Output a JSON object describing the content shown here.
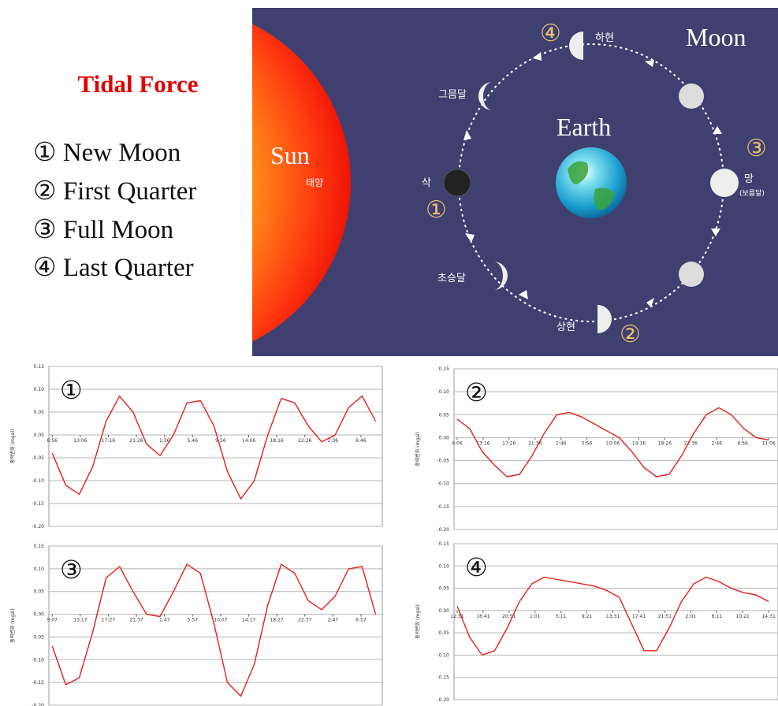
{
  "diagram": {
    "title": "Tidal Force",
    "legend": [
      "① New Moon",
      "② First Quarter",
      "③ Full Moon",
      "④ Last Quarter"
    ],
    "sun": "Sun",
    "sun_korean": "태양",
    "moon": "Moon",
    "earth": "Earth",
    "phases": {
      "new": "삭",
      "waxing_crescent": "초승달",
      "first_quarter": "상현",
      "full": "망",
      "full_alt": "(보름달)",
      "last_quarter": "하현",
      "waning_crescent": "그믐달"
    },
    "numbers": [
      "①",
      "②",
      "③",
      "④"
    ]
  },
  "chart_data": [
    {
      "type": "line",
      "label": "①",
      "y_label": "중력변화 (mgal)",
      "color": "#e3201b",
      "x": [
        0,
        2,
        4,
        6,
        8,
        10,
        12,
        14,
        16,
        18,
        20,
        22,
        24,
        26,
        28,
        30,
        32,
        34,
        36,
        38,
        40,
        42,
        44,
        46,
        48
      ],
      "values": [
        -0.04,
        -0.11,
        -0.13,
        -0.07,
        0.03,
        0.085,
        0.05,
        -0.02,
        -0.045,
        0.0,
        0.07,
        0.075,
        0.02,
        -0.08,
        -0.14,
        -0.1,
        0.0,
        0.08,
        0.07,
        0.02,
        -0.015,
        0.0,
        0.06,
        0.085,
        0.03
      ],
      "xlim": [
        -0.5,
        49
      ],
      "ylim": [
        -0.2,
        0.15
      ],
      "xticks": [
        {
          "value": 0,
          "label": "8:56"
        },
        {
          "value": 4.17,
          "label": "13:06"
        },
        {
          "value": 8.33,
          "label": "17:16"
        },
        {
          "value": 12.5,
          "label": "21:26"
        },
        {
          "value": 16.67,
          "label": "1:36"
        },
        {
          "value": 20.83,
          "label": "5:46"
        },
        {
          "value": 25,
          "label": "9:56"
        },
        {
          "value": 29.17,
          "label": "14:06"
        },
        {
          "value": 33.33,
          "label": "18:16"
        },
        {
          "value": 37.5,
          "label": "22:26"
        },
        {
          "value": 41.67,
          "label": "2:36"
        },
        {
          "value": 45.83,
          "label": "6:46"
        }
      ],
      "yticks": [
        0.15,
        {
          "value": 0.1,
          "label": "0.10"
        },
        0.05,
        {
          "value": 0,
          "label": "0.00"
        },
        -0.05,
        {
          "value": -0.1,
          "label": "-0.10"
        },
        -0.15,
        {
          "value": -0.2,
          "label": "-0.20"
        }
      ],
      "grid": true
    },
    {
      "type": "line",
      "label": "②",
      "y_label": "중력변화 (mgal)",
      "color": "#e3201b",
      "x": [
        0,
        2,
        4,
        6,
        8,
        10,
        12,
        14,
        16,
        18,
        20,
        22,
        24,
        26,
        28,
        30,
        32,
        34,
        36,
        38,
        40,
        42,
        44,
        46,
        48,
        50
      ],
      "values": [
        0.04,
        0.02,
        -0.03,
        -0.06,
        -0.085,
        -0.08,
        -0.04,
        0.01,
        0.05,
        0.055,
        0.045,
        0.03,
        0.015,
        0.0,
        -0.03,
        -0.065,
        -0.085,
        -0.08,
        -0.04,
        0.01,
        0.05,
        0.065,
        0.05,
        0.02,
        0.0,
        -0.005
      ],
      "xlim": [
        -0.5,
        51.5
      ],
      "ylim": [
        -0.2,
        0.15
      ],
      "xticks": [
        {
          "value": 0,
          "label": "9:06"
        },
        {
          "value": 4.17,
          "label": "13:16"
        },
        {
          "value": 8.33,
          "label": "17:26"
        },
        {
          "value": 12.5,
          "label": "21:36"
        },
        {
          "value": 16.67,
          "label": "1:46"
        },
        {
          "value": 20.83,
          "label": "5:56"
        },
        {
          "value": 25,
          "label": "10:06"
        },
        {
          "value": 29.17,
          "label": "14:16"
        },
        {
          "value": 33.33,
          "label": "18:26"
        },
        {
          "value": 37.5,
          "label": "22:36"
        },
        {
          "value": 41.67,
          "label": "2:46"
        },
        {
          "value": 45.83,
          "label": "6:56"
        },
        {
          "value": 50,
          "label": "11:06"
        }
      ],
      "yticks": [
        0.15,
        {
          "value": 0.1,
          "label": "0.10"
        },
        0.05,
        {
          "value": 0,
          "label": "0.00"
        },
        -0.05,
        {
          "value": -0.1,
          "label": "-0.10"
        },
        -0.15,
        {
          "value": -0.2,
          "label": "-0.20"
        }
      ],
      "grid": true
    },
    {
      "type": "line",
      "label": "③",
      "y_label": "중력변화 (mgal)",
      "color": "#e3201b",
      "x": [
        0,
        2,
        4,
        6,
        8,
        10,
        12,
        14,
        16,
        18,
        20,
        22,
        24,
        26,
        28,
        30,
        32,
        34,
        36,
        38,
        40,
        42,
        44,
        46,
        48
      ],
      "values": [
        -0.07,
        -0.155,
        -0.14,
        -0.04,
        0.08,
        0.105,
        0.05,
        0.0,
        -0.005,
        0.05,
        0.11,
        0.09,
        -0.02,
        -0.15,
        -0.18,
        -0.11,
        0.02,
        0.11,
        0.09,
        0.03,
        0.01,
        0.04,
        0.1,
        0.105,
        0.0
      ],
      "xlim": [
        -0.5,
        49
      ],
      "ylim": [
        -0.2,
        0.15
      ],
      "xticks": [
        {
          "value": 0,
          "label": "9:07"
        },
        {
          "value": 4.17,
          "label": "13:17"
        },
        {
          "value": 8.33,
          "label": "17:27"
        },
        {
          "value": 12.5,
          "label": "21:37"
        },
        {
          "value": 16.67,
          "label": "1:47"
        },
        {
          "value": 20.83,
          "label": "5:57"
        },
        {
          "value": 25,
          "label": "10:07"
        },
        {
          "value": 29.17,
          "label": "14:17"
        },
        {
          "value": 33.33,
          "label": "18:27"
        },
        {
          "value": 37.5,
          "label": "22:37"
        },
        {
          "value": 41.67,
          "label": "2:47"
        },
        {
          "value": 45.83,
          "label": "6:57"
        }
      ],
      "yticks": [
        0.15,
        {
          "value": 0.1,
          "label": "0.10"
        },
        0.05,
        {
          "value": 0,
          "label": "0.00"
        },
        -0.05,
        {
          "value": -0.1,
          "label": "-0.10"
        },
        -0.15,
        {
          "value": -0.2,
          "label": "-0.20"
        }
      ],
      "grid": true
    },
    {
      "type": "line",
      "label": "④",
      "y_label": "중력변화 (mgal)",
      "color": "#e3201b",
      "x": [
        0,
        2,
        4,
        6,
        8,
        10,
        12,
        14,
        16,
        18,
        20,
        22,
        24,
        26,
        28,
        30,
        32,
        34,
        36,
        38,
        40,
        42,
        44,
        46,
        48,
        50
      ],
      "values": [
        0.01,
        -0.06,
        -0.1,
        -0.09,
        -0.04,
        0.02,
        0.06,
        0.075,
        0.07,
        0.065,
        0.06,
        0.055,
        0.045,
        0.03,
        -0.03,
        -0.09,
        -0.09,
        -0.04,
        0.02,
        0.06,
        0.075,
        0.065,
        0.05,
        0.04,
        0.035,
        0.02
      ],
      "xlim": [
        -0.5,
        51.5
      ],
      "ylim": [
        -0.2,
        0.15
      ],
      "xticks": [
        {
          "value": 0,
          "label": "12:31"
        },
        {
          "value": 4.17,
          "label": "16:41"
        },
        {
          "value": 8.33,
          "label": "20:51"
        },
        {
          "value": 12.5,
          "label": "1:01"
        },
        {
          "value": 16.67,
          "label": "5:11"
        },
        {
          "value": 20.83,
          "label": "9:21"
        },
        {
          "value": 25,
          "label": "13:31"
        },
        {
          "value": 29.17,
          "label": "17:41"
        },
        {
          "value": 33.33,
          "label": "21:51"
        },
        {
          "value": 37.5,
          "label": "2:01"
        },
        {
          "value": 41.67,
          "label": "6:11"
        },
        {
          "value": 45.83,
          "label": "10:21"
        },
        {
          "value": 50,
          "label": "14:31"
        }
      ],
      "yticks": [
        0.15,
        {
          "value": 0.1,
          "label": "0.10"
        },
        0.05,
        {
          "value": 0,
          "label": "0.00"
        },
        -0.05,
        {
          "value": -0.1,
          "label": "-0.10"
        },
        -0.15,
        {
          "value": -0.2,
          "label": "-0.20"
        }
      ],
      "grid": true
    }
  ]
}
